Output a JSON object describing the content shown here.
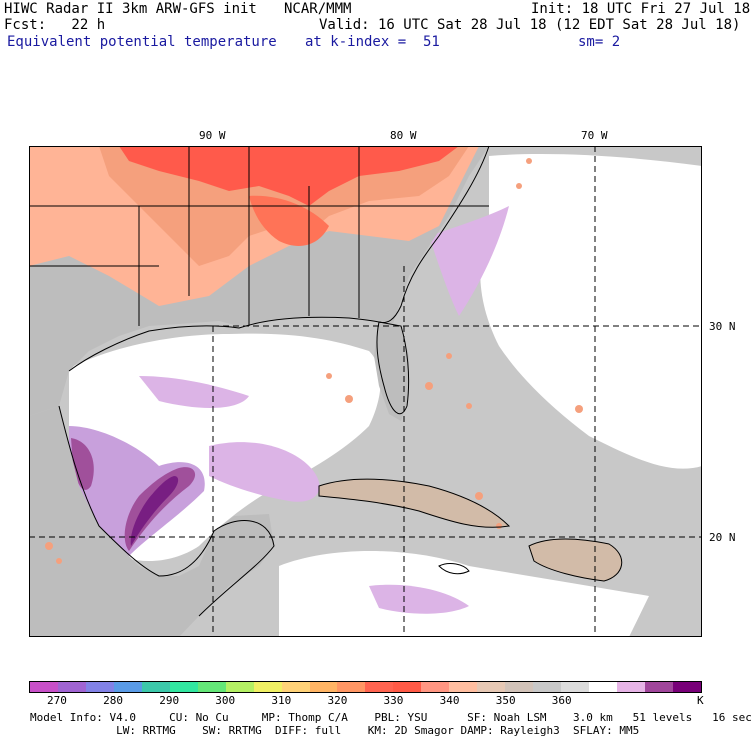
{
  "header": {
    "model_title": "HIWC Radar II 3km ARW-GFS init",
    "org": "NCAR/MMM",
    "init": "Init: 18 UTC Fri 27 Jul 18",
    "fcst": "Fcst:   22 h",
    "valid": "Valid: 16 UTC Sat 28 Jul 18 (12 EDT Sat 28 Jul 18)",
    "field": "Equivalent potential temperature",
    "level": "at k-index =  51",
    "smooth": "sm= 2"
  },
  "map": {
    "lon_labels": [
      "90 W",
      "80 W",
      "70 W"
    ],
    "lat_labels": [
      "30 N",
      "20 N"
    ],
    "colors": {
      "ocean_gray": "#c8c8c8",
      "land_gray": "#bdbdbd",
      "white": "#ffffff",
      "lavender": "#dcb4e6",
      "lilac": "#c8a0dc",
      "purple": "#a0509b",
      "dark_purple": "#781e82",
      "tan": "#d2bba8",
      "salmon": "#ffb496",
      "light_orange": "#f5a07d",
      "coral": "#ff7357",
      "red": "#ff5a4b"
    }
  },
  "colorbar": {
    "colors": [
      "#c850c8",
      "#a064d2",
      "#8282e6",
      "#5a9be6",
      "#3cc8aa",
      "#32e6a0",
      "#64e678",
      "#b4f064",
      "#f0f064",
      "#ffd278",
      "#ffb464",
      "#ff9664",
      "#ff6450",
      "#ff5a46",
      "#ff9682",
      "#ffbea0",
      "#e6c8b4",
      "#d2c3b9",
      "#c8c8c8",
      "#dcdcdc",
      "#ffffff",
      "#e6b4e6",
      "#a0469b",
      "#780078"
    ],
    "labels": [
      "270",
      "280",
      "290",
      "300",
      "310",
      "320",
      "330",
      "340",
      "350",
      "360"
    ],
    "unit": "K"
  },
  "footer": {
    "line1": "Model Info: V4.0     CU: No Cu     MP: Thomp C/A    PBL: YSU      SF: Noah LSM    3.0 km   51 levels   16 sec",
    "line2": "             LW: RRTMG    SW: RRTMG  DIFF: full    KM: 2D Smagor DAMP: Rayleigh3  SFLAY: MM5"
  }
}
